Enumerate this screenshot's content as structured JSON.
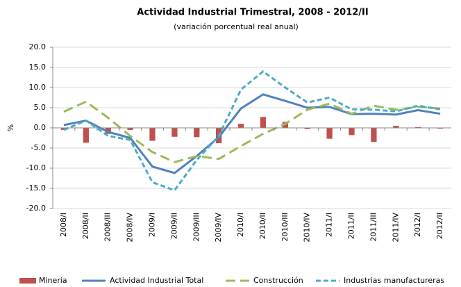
{
  "chart_data": {
    "type": "combo",
    "title": "Actividad Industrial Trimestral, 2008 - 2012/II",
    "subtitle": "(variación porcentual real anual)",
    "y_label": "%",
    "categories": [
      "2008/I",
      "2008/II",
      "2008/III",
      "2008/IV",
      "2009/I",
      "2009/II",
      "2009/III",
      "2009/IV",
      "2010/I",
      "2010/II",
      "2010/III",
      "2010/IV",
      "2011/I",
      "2011/II",
      "2011/III",
      "2011/IV",
      "2012/I",
      "2012/II"
    ],
    "series": [
      {
        "name": "Minería",
        "type": "bar",
        "color": "#c0504d",
        "values": [
          -0.5,
          -3.7,
          -1.5,
          -0.5,
          -3.2,
          -2.2,
          -2.3,
          -3.8,
          1.0,
          2.7,
          1.5,
          -0.3,
          -2.7,
          -1.8,
          -3.5,
          0.5,
          0.2,
          -0.2
        ]
      },
      {
        "name": "Actividad Industrial  Total",
        "type": "line",
        "line_style": "solid",
        "color": "#4f81bd",
        "values": [
          0.7,
          1.8,
          -1.0,
          -2.5,
          -9.6,
          -11.2,
          -7.0,
          -2.3,
          4.8,
          8.3,
          6.7,
          5.0,
          5.2,
          3.4,
          3.5,
          3.3,
          4.4,
          3.5
        ]
      },
      {
        "name": "Construcción",
        "type": "line",
        "line_style": "long-dash",
        "color": "#9bbb59",
        "values": [
          4.0,
          6.5,
          2.5,
          -2.0,
          -6.0,
          -8.5,
          -7.0,
          -7.7,
          -4.5,
          -1.5,
          1.0,
          4.5,
          6.0,
          3.5,
          5.5,
          4.5,
          5.2,
          4.8
        ]
      },
      {
        "name": "Industrias manufactureras",
        "type": "line",
        "line_style": "dashed",
        "color": "#4bacc6",
        "values": [
          -0.5,
          1.8,
          -2.0,
          -3.0,
          -13.5,
          -15.5,
          -8.0,
          -2.0,
          9.5,
          14.0,
          10.0,
          6.3,
          7.5,
          4.6,
          4.5,
          4.1,
          5.5,
          4.6
        ]
      }
    ],
    "ylim": [
      -20,
      20
    ],
    "yticks": [
      {
        "value": -20,
        "label": "-20.0"
      },
      {
        "value": -15,
        "label": "-15.0"
      },
      {
        "value": -10,
        "label": "-10.0"
      },
      {
        "value": -5,
        "label": "-5.0"
      },
      {
        "value": 0,
        "label": "0.0"
      },
      {
        "value": 5,
        "label": "5.0"
      },
      {
        "value": 10,
        "label": "10.0"
      },
      {
        "value": 15,
        "label": "15.0"
      },
      {
        "value": 20,
        "label": "20.0"
      }
    ],
    "grid": true,
    "legend": "bottom"
  }
}
